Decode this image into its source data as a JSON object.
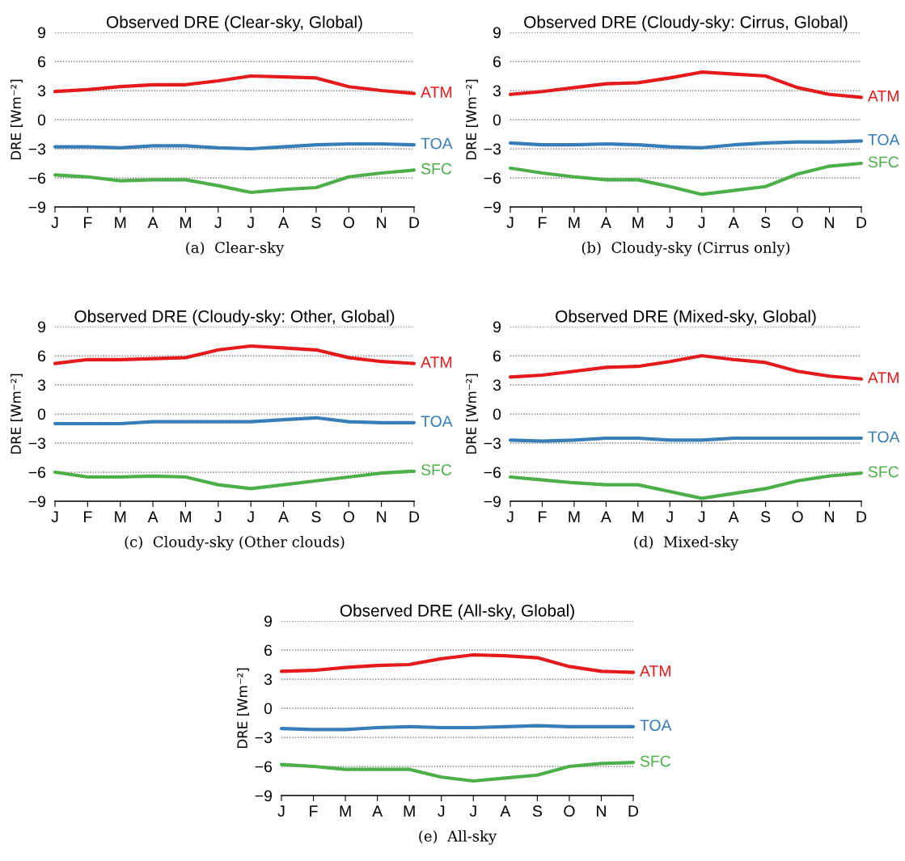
{
  "chart_data": [
    {
      "type": "line",
      "title": "Observed DRE (Clear-sky, Global)",
      "ylabel": "DRE [Wm⁻²]",
      "categories": [
        "J",
        "F",
        "M",
        "A",
        "M",
        "J",
        "J",
        "A",
        "S",
        "O",
        "N",
        "D"
      ],
      "ylim": [
        -9,
        9
      ],
      "yticks": [
        {
          "value": -9,
          "label": "−9"
        },
        {
          "value": -6,
          "label": "−6"
        },
        {
          "value": -3,
          "label": "−3"
        },
        0,
        3,
        6,
        9
      ],
      "grid": "y",
      "legend": false,
      "line_style": "solid",
      "marker": "none",
      "annotations": [
        "(a)  Clear-sky"
      ],
      "series": [
        {
          "name": "ATM",
          "color": "#e41a1c",
          "values": [
            2.9,
            3.1,
            3.4,
            3.6,
            3.6,
            4.0,
            4.5,
            4.4,
            4.3,
            3.4,
            3.0,
            2.7
          ]
        },
        {
          "name": "TOA",
          "color": "#377eb8",
          "values": [
            -2.8,
            -2.8,
            -2.9,
            -2.7,
            -2.7,
            -2.9,
            -3.0,
            -2.8,
            -2.6,
            -2.5,
            -2.5,
            -2.6
          ]
        },
        {
          "name": "SFC",
          "color": "#4daf4a",
          "values": [
            -5.7,
            -5.9,
            -6.3,
            -6.2,
            -6.2,
            -6.8,
            -7.5,
            -7.2,
            -7.0,
            -5.9,
            -5.5,
            -5.2
          ]
        }
      ]
    },
    {
      "type": "line",
      "title": "Observed DRE (Cloudy-sky: Cirrus, Global)",
      "ylabel": "DRE [Wm⁻²]",
      "categories": [
        "J",
        "F",
        "M",
        "A",
        "M",
        "J",
        "J",
        "A",
        "S",
        "O",
        "N",
        "D"
      ],
      "ylim": [
        -9,
        9
      ],
      "yticks": [
        {
          "value": -9,
          "label": "−9"
        },
        {
          "value": -6,
          "label": "−6"
        },
        {
          "value": -3,
          "label": "−3"
        },
        0,
        3,
        6,
        9
      ],
      "grid": "y",
      "legend": false,
      "line_style": "solid",
      "marker": "none",
      "annotations": [
        "(b)  Cloudy-sky (Cirrus only)"
      ],
      "series": [
        {
          "name": "ATM",
          "color": "#e41a1c",
          "values": [
            2.6,
            2.9,
            3.3,
            3.7,
            3.8,
            4.3,
            4.9,
            4.7,
            4.5,
            3.3,
            2.6,
            2.3
          ]
        },
        {
          "name": "TOA",
          "color": "#377eb8",
          "values": [
            -2.4,
            -2.6,
            -2.6,
            -2.5,
            -2.6,
            -2.8,
            -2.9,
            -2.6,
            -2.4,
            -2.3,
            -2.3,
            -2.2
          ]
        },
        {
          "name": "SFC",
          "color": "#4daf4a",
          "values": [
            -5.0,
            -5.5,
            -5.9,
            -6.2,
            -6.2,
            -6.9,
            -7.7,
            -7.3,
            -6.9,
            -5.6,
            -4.8,
            -4.5
          ]
        }
      ]
    },
    {
      "type": "line",
      "title": "Observed DRE (Cloudy-sky: Other, Global)",
      "ylabel": "DRE [Wm⁻²]",
      "categories": [
        "J",
        "F",
        "M",
        "A",
        "M",
        "J",
        "J",
        "A",
        "S",
        "O",
        "N",
        "D"
      ],
      "ylim": [
        -9,
        9
      ],
      "yticks": [
        {
          "value": -9,
          "label": "−9"
        },
        {
          "value": -6,
          "label": "−6"
        },
        {
          "value": -3,
          "label": "−3"
        },
        0,
        3,
        6,
        9
      ],
      "grid": "y",
      "legend": false,
      "line_style": "solid",
      "marker": "none",
      "annotations": [
        "(c)  Cloudy-sky (Other clouds)"
      ],
      "series": [
        {
          "name": "ATM",
          "color": "#e41a1c",
          "values": [
            5.2,
            5.6,
            5.6,
            5.7,
            5.8,
            6.6,
            7.0,
            6.8,
            6.6,
            5.8,
            5.4,
            5.2
          ]
        },
        {
          "name": "TOA",
          "color": "#377eb8",
          "values": [
            -1.0,
            -1.0,
            -1.0,
            -0.8,
            -0.8,
            -0.8,
            -0.8,
            -0.6,
            -0.4,
            -0.8,
            -0.9,
            -0.9
          ]
        },
        {
          "name": "SFC",
          "color": "#4daf4a",
          "values": [
            -6.0,
            -6.5,
            -6.5,
            -6.4,
            -6.5,
            -7.3,
            -7.7,
            -7.3,
            -6.9,
            -6.5,
            -6.1,
            -5.9
          ]
        }
      ]
    },
    {
      "type": "line",
      "title": "Observed DRE (Mixed-sky, Global)",
      "ylabel": "DRE [Wm⁻²]",
      "categories": [
        "J",
        "F",
        "M",
        "A",
        "M",
        "J",
        "J",
        "A",
        "S",
        "O",
        "N",
        "D"
      ],
      "ylim": [
        -9,
        9
      ],
      "yticks": [
        {
          "value": -9,
          "label": "−9"
        },
        {
          "value": -6,
          "label": "−6"
        },
        {
          "value": -3,
          "label": "−3"
        },
        0,
        3,
        6,
        9
      ],
      "grid": "y",
      "legend": false,
      "line_style": "solid",
      "marker": "none",
      "annotations": [
        "(d)  Mixed-sky"
      ],
      "series": [
        {
          "name": "ATM",
          "color": "#e41a1c",
          "values": [
            3.8,
            4.0,
            4.4,
            4.8,
            4.9,
            5.4,
            6.0,
            5.6,
            5.3,
            4.4,
            3.9,
            3.6
          ]
        },
        {
          "name": "TOA",
          "color": "#377eb8",
          "values": [
            -2.7,
            -2.8,
            -2.7,
            -2.5,
            -2.5,
            -2.7,
            -2.7,
            -2.5,
            -2.5,
            -2.5,
            -2.5,
            -2.5
          ]
        },
        {
          "name": "SFC",
          "color": "#4daf4a",
          "values": [
            -6.5,
            -6.8,
            -7.1,
            -7.3,
            -7.3,
            -8.0,
            -8.7,
            -8.2,
            -7.7,
            -6.9,
            -6.4,
            -6.1
          ]
        }
      ]
    },
    {
      "type": "line",
      "title": "Observed DRE (All-sky, Global)",
      "ylabel": "DRE [Wm⁻²]",
      "categories": [
        "J",
        "F",
        "M",
        "A",
        "M",
        "J",
        "J",
        "A",
        "S",
        "O",
        "N",
        "D"
      ],
      "ylim": [
        -9,
        9
      ],
      "yticks": [
        {
          "value": -9,
          "label": "−9"
        },
        {
          "value": -6,
          "label": "−6"
        },
        {
          "value": -3,
          "label": "−3"
        },
        0,
        3,
        6,
        9
      ],
      "grid": "y",
      "legend": false,
      "line_style": "solid",
      "marker": "none",
      "annotations": [
        "(e)  All-sky"
      ],
      "series": [
        {
          "name": "ATM",
          "color": "#e41a1c",
          "values": [
            3.8,
            3.9,
            4.2,
            4.4,
            4.5,
            5.1,
            5.5,
            5.4,
            5.2,
            4.3,
            3.8,
            3.7
          ]
        },
        {
          "name": "TOA",
          "color": "#377eb8",
          "values": [
            -2.1,
            -2.2,
            -2.2,
            -2.0,
            -1.9,
            -2.0,
            -2.0,
            -1.9,
            -1.8,
            -1.9,
            -1.9,
            -1.9
          ]
        },
        {
          "name": "SFC",
          "color": "#4daf4a",
          "values": [
            -5.8,
            -6.0,
            -6.3,
            -6.3,
            -6.3,
            -7.1,
            -7.5,
            -7.2,
            -6.9,
            -6.0,
            -5.7,
            -5.6
          ]
        }
      ]
    }
  ]
}
